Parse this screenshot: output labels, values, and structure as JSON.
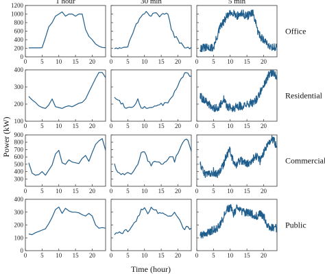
{
  "colors": {
    "line": "#1f5d8c",
    "axis": "#333333"
  },
  "figure": {
    "ylabel": "Power (kW)",
    "xlabel": "Time (hour)"
  },
  "chart_data": {
    "type": "line",
    "xlabel": "Time (hour)",
    "ylabel": "Power (kW)",
    "xlim": [
      0,
      24
    ],
    "xticks": [
      0,
      5,
      10,
      15,
      20
    ],
    "columns": [
      "1 hour",
      "30 min",
      "5 min"
    ],
    "column_steps_hours": [
      1,
      0.5,
      0.0833
    ],
    "rows": [
      {
        "name": "Office",
        "ylim": [
          0,
          1200
        ],
        "yticks": [
          0,
          200,
          400,
          600,
          800,
          1000,
          1200
        ],
        "profile": [
          [
            1,
            210
          ],
          [
            2,
            210
          ],
          [
            3,
            210
          ],
          [
            4,
            210
          ],
          [
            5,
            215
          ],
          [
            6,
            450
          ],
          [
            7,
            700
          ],
          [
            8,
            800
          ],
          [
            9,
            950
          ],
          [
            10,
            1000
          ],
          [
            11,
            1050
          ],
          [
            12,
            950
          ],
          [
            13,
            1000
          ],
          [
            14,
            1000
          ],
          [
            15,
            950
          ],
          [
            16,
            1000
          ],
          [
            17,
            1000
          ],
          [
            18,
            640
          ],
          [
            19,
            480
          ],
          [
            20,
            400
          ],
          [
            21,
            300
          ],
          [
            22,
            250
          ],
          [
            23,
            220
          ],
          [
            24,
            215
          ]
        ]
      },
      {
        "name": "Residential",
        "ylim": [
          100,
          400
        ],
        "yticks": [
          100,
          200,
          300,
          400
        ],
        "profile": [
          [
            1,
            245
          ],
          [
            2,
            225
          ],
          [
            3,
            210
          ],
          [
            4,
            190
          ],
          [
            5,
            180
          ],
          [
            6,
            175
          ],
          [
            7,
            195
          ],
          [
            8,
            230
          ],
          [
            9,
            185
          ],
          [
            10,
            180
          ],
          [
            11,
            175
          ],
          [
            12,
            185
          ],
          [
            13,
            190
          ],
          [
            14,
            185
          ],
          [
            15,
            195
          ],
          [
            16,
            205
          ],
          [
            17,
            210
          ],
          [
            18,
            230
          ],
          [
            19,
            270
          ],
          [
            20,
            310
          ],
          [
            21,
            350
          ],
          [
            22,
            385
          ],
          [
            23,
            385
          ],
          [
            24,
            355
          ]
        ]
      },
      {
        "name": "Commercial",
        "ylim": [
          200,
          900
        ],
        "yticks": [
          300,
          400,
          500,
          600,
          700,
          800,
          900
        ],
        "profile": [
          [
            1,
            520
          ],
          [
            2,
            380
          ],
          [
            3,
            350
          ],
          [
            4,
            360
          ],
          [
            5,
            400
          ],
          [
            6,
            350
          ],
          [
            7,
            420
          ],
          [
            8,
            490
          ],
          [
            9,
            640
          ],
          [
            10,
            690
          ],
          [
            11,
            520
          ],
          [
            12,
            500
          ],
          [
            13,
            560
          ],
          [
            14,
            530
          ],
          [
            15,
            520
          ],
          [
            16,
            510
          ],
          [
            17,
            580
          ],
          [
            18,
            620
          ],
          [
            19,
            540
          ],
          [
            20,
            660
          ],
          [
            21,
            770
          ],
          [
            22,
            820
          ],
          [
            23,
            850
          ],
          [
            24,
            690
          ]
        ]
      },
      {
        "name": "Public",
        "ylim": [
          0,
          400
        ],
        "yticks": [
          0,
          100,
          200,
          300,
          400
        ],
        "profile": [
          [
            1,
            130
          ],
          [
            2,
            125
          ],
          [
            3,
            140
          ],
          [
            4,
            150
          ],
          [
            5,
            160
          ],
          [
            6,
            170
          ],
          [
            7,
            210
          ],
          [
            8,
            260
          ],
          [
            9,
            320
          ],
          [
            10,
            340
          ],
          [
            11,
            290
          ],
          [
            12,
            330
          ],
          [
            13,
            310
          ],
          [
            14,
            300
          ],
          [
            15,
            300
          ],
          [
            16,
            295
          ],
          [
            17,
            280
          ],
          [
            18,
            270
          ],
          [
            19,
            290
          ],
          [
            20,
            270
          ],
          [
            21,
            200
          ],
          [
            22,
            175
          ],
          [
            23,
            180
          ],
          [
            24,
            175
          ]
        ]
      }
    ]
  }
}
